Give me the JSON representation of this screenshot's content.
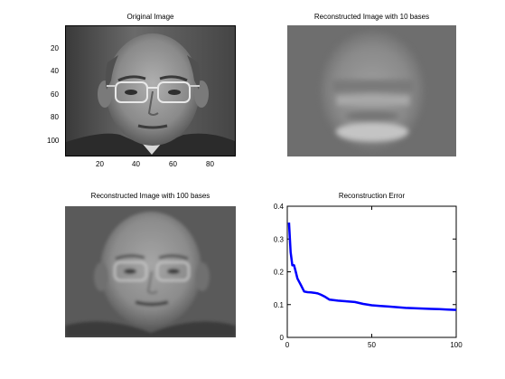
{
  "figure": {
    "panels": [
      {
        "title": "Original Image",
        "xticks": [
          "20",
          "40",
          "60",
          "80"
        ],
        "yticks": [
          "20",
          "40",
          "60",
          "80",
          "100"
        ]
      },
      {
        "title": "Reconstructed Image with 10 bases"
      },
      {
        "title": "Reconstructed Image with 100 bases"
      }
    ]
  },
  "chart_data": [
    {
      "type": "heatmap",
      "title": "Original Image",
      "colormap": "gray",
      "xticks": [
        20,
        40,
        60,
        80
      ],
      "yticks": [
        20,
        40,
        60,
        80,
        100
      ],
      "xlim": [
        0.5,
        92.5
      ],
      "ylim": [
        0.5,
        112.5
      ]
    },
    {
      "type": "heatmap",
      "title": "Reconstructed Image with 10 bases",
      "colormap": "gray"
    },
    {
      "type": "heatmap",
      "title": "Reconstructed Image with 100 bases",
      "colormap": "gray"
    },
    {
      "type": "line",
      "title": "Reconstruction Error",
      "xlabel": "",
      "ylabel": "",
      "xlim": [
        0,
        100
      ],
      "ylim": [
        0,
        0.4
      ],
      "xticks": [
        0,
        50,
        100
      ],
      "yticks": [
        0,
        0.1,
        0.2,
        0.3,
        0.4
      ],
      "ytick_labels": [
        "0",
        "0.1",
        "0.2",
        "0.3",
        "0.4"
      ],
      "color": "#0000ff",
      "series": [
        {
          "x": [
            1,
            2,
            3,
            4,
            5,
            6,
            7,
            8,
            9,
            10,
            12,
            14,
            16,
            18,
            20,
            22,
            25,
            30,
            35,
            40,
            45,
            50,
            55,
            60,
            65,
            70,
            75,
            80,
            85,
            90,
            95,
            100
          ],
          "y": [
            0.35,
            0.26,
            0.22,
            0.22,
            0.2,
            0.18,
            0.17,
            0.16,
            0.15,
            0.14,
            0.138,
            0.137,
            0.136,
            0.134,
            0.13,
            0.125,
            0.115,
            0.112,
            0.11,
            0.108,
            0.102,
            0.098,
            0.096,
            0.094,
            0.092,
            0.09,
            0.089,
            0.088,
            0.087,
            0.086,
            0.085,
            0.084
          ]
        }
      ]
    }
  ]
}
